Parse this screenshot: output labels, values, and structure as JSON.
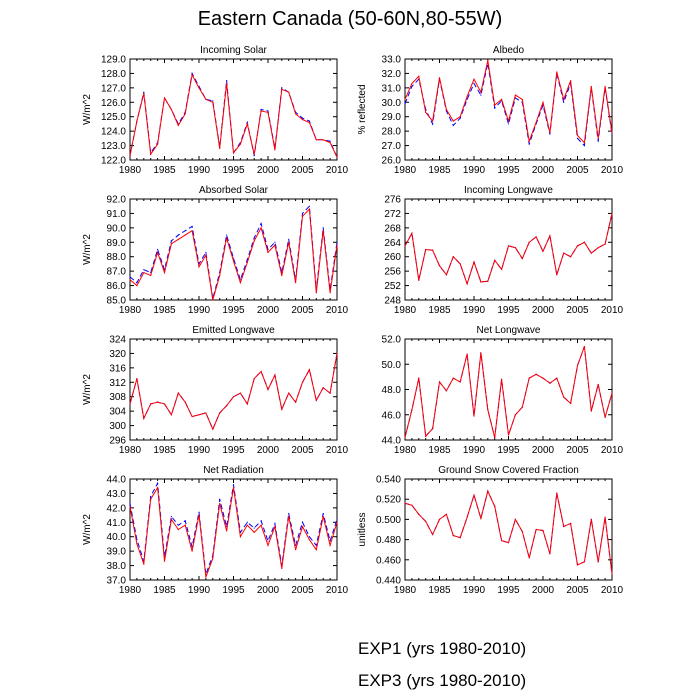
{
  "title": "Eastern Canada (50-60N,80-55W)",
  "legend": [
    {
      "label": "EXP1 (yrs 1980-2010)",
      "color": "#0000ff",
      "style": "dashed"
    },
    {
      "label": "EXP3 (yrs 1980-2010)",
      "color": "#ff0000",
      "style": "solid"
    }
  ],
  "chart_data": [
    {
      "type": "line",
      "title": "Incoming Solar",
      "ylabel": "W/m^2",
      "xlim": [
        1980,
        2010
      ],
      "ylim": [
        122.0,
        129.0
      ],
      "yticks": [
        "122.0",
        "123.0",
        "124.0",
        "125.0",
        "126.0",
        "127.0",
        "128.0",
        "129.0"
      ],
      "xticks": [
        "1980",
        "1985",
        "1990",
        "1995",
        "2000",
        "2005",
        "2010"
      ],
      "x": [
        1980,
        1981,
        1982,
        1983,
        1984,
        1985,
        1986,
        1987,
        1988,
        1989,
        1990,
        1991,
        1992,
        1993,
        1994,
        1995,
        1996,
        1997,
        1998,
        1999,
        2000,
        2001,
        2002,
        2003,
        2004,
        2005,
        2006,
        2007,
        2008,
        2009,
        2010
      ],
      "series": [
        {
          "name": "EXP1 (yrs 1980-2010)",
          "values": [
            122.3,
            124.7,
            126.7,
            122.5,
            123.2,
            126.3,
            125.5,
            124.5,
            125.3,
            128.0,
            127.1,
            126.2,
            126.1,
            122.9,
            127.5,
            122.5,
            123.2,
            124.6,
            122.3,
            125.5,
            125.4,
            122.8,
            127.0,
            126.7,
            125.3,
            124.9,
            124.7,
            123.4,
            123.4,
            123.3,
            122.2
          ]
        },
        {
          "name": "EXP3 (yrs 1980-2010)",
          "values": [
            122.3,
            124.7,
            126.6,
            122.4,
            123.1,
            126.3,
            125.5,
            124.4,
            125.2,
            127.9,
            127.0,
            126.2,
            126.0,
            122.8,
            127.3,
            122.5,
            123.1,
            124.5,
            122.4,
            125.4,
            125.3,
            122.7,
            126.9,
            126.7,
            125.2,
            124.8,
            124.6,
            123.4,
            123.4,
            123.2,
            122.2
          ]
        }
      ]
    },
    {
      "type": "line",
      "title": "Albedo",
      "ylabel": "% reflected",
      "xlim": [
        1980,
        2010
      ],
      "ylim": [
        26.0,
        33.0
      ],
      "yticks": [
        "26.0",
        "27.0",
        "28.0",
        "29.0",
        "30.0",
        "31.0",
        "32.0",
        "33.0"
      ],
      "xticks": [
        "1980",
        "1985",
        "1990",
        "1995",
        "2000",
        "2005",
        "2010"
      ],
      "x": [
        1980,
        1981,
        1982,
        1983,
        1984,
        1985,
        1986,
        1987,
        1988,
        1989,
        1990,
        1991,
        1992,
        1993,
        1994,
        1995,
        1996,
        1997,
        1998,
        1999,
        2000,
        2001,
        2002,
        2003,
        2004,
        2005,
        2006,
        2007,
        2008,
        2009,
        2010
      ],
      "series": [
        {
          "name": "EXP1 (yrs 1980-2010)",
          "values": [
            29.9,
            31.1,
            31.6,
            29.5,
            28.5,
            31.6,
            29.4,
            28.4,
            28.9,
            30.2,
            31.3,
            30.5,
            32.7,
            29.6,
            30.1,
            28.5,
            30.3,
            30.0,
            27.1,
            28.5,
            29.8,
            27.8,
            32.0,
            30.0,
            31.3,
            27.5,
            27.0,
            31.0,
            27.3,
            31.0,
            27.8
          ]
        },
        {
          "name": "EXP3 (yrs 1980-2010)",
          "values": [
            30.2,
            31.3,
            31.8,
            29.3,
            28.7,
            31.7,
            29.5,
            28.7,
            29.0,
            30.4,
            31.6,
            30.7,
            32.9,
            29.8,
            30.2,
            28.7,
            30.5,
            30.2,
            27.3,
            28.6,
            30.0,
            27.9,
            32.1,
            30.2,
            31.5,
            27.7,
            27.2,
            31.1,
            27.5,
            31.1,
            27.9
          ]
        }
      ]
    },
    {
      "type": "line",
      "title": "Absorbed Solar",
      "ylabel": "W/m^2",
      "xlim": [
        1980,
        2010
      ],
      "ylim": [
        85.0,
        92.0
      ],
      "yticks": [
        "85.0",
        "86.0",
        "87.0",
        "88.0",
        "89.0",
        "90.0",
        "91.0",
        "92.0"
      ],
      "xticks": [
        "1980",
        "1985",
        "1990",
        "1995",
        "2000",
        "2005",
        "2010"
      ],
      "x": [
        1980,
        1981,
        1982,
        1983,
        1984,
        1985,
        1986,
        1987,
        1988,
        1989,
        1990,
        1991,
        1992,
        1993,
        1994,
        1995,
        1996,
        1997,
        1998,
        1999,
        2000,
        2001,
        2002,
        2003,
        2004,
        2005,
        2006,
        2007,
        2008,
        2009,
        2010
      ],
      "series": [
        {
          "name": "EXP1 (yrs 1980-2010)",
          "values": [
            86.6,
            86.2,
            87.1,
            86.9,
            88.5,
            87.1,
            89.1,
            89.5,
            89.8,
            90.1,
            87.5,
            88.3,
            85.1,
            86.9,
            89.5,
            87.9,
            86.4,
            87.8,
            89.3,
            90.3,
            88.5,
            89.0,
            86.9,
            89.2,
            86.4,
            91.0,
            91.5,
            85.7,
            90.0,
            85.7,
            89.0
          ]
        },
        {
          "name": "EXP3 (yrs 1980-2010)",
          "values": [
            86.4,
            86.0,
            86.9,
            86.7,
            88.3,
            86.9,
            88.9,
            89.2,
            89.5,
            89.8,
            87.3,
            88.1,
            85.0,
            86.7,
            89.3,
            87.7,
            86.2,
            87.6,
            89.1,
            90.0,
            88.3,
            88.8,
            86.7,
            89.0,
            86.2,
            90.8,
            91.3,
            85.5,
            89.8,
            85.5,
            88.8
          ]
        }
      ]
    },
    {
      "type": "line",
      "title": "Incoming Longwave",
      "ylabel": "",
      "xlim": [
        1980,
        2010
      ],
      "ylim": [
        248,
        276
      ],
      "yticks": [
        "248",
        "252",
        "256",
        "260",
        "264",
        "268",
        "272",
        "276"
      ],
      "xticks": [
        "1980",
        "1985",
        "1990",
        "1995",
        "2000",
        "2005",
        "2010"
      ],
      "x": [
        1980,
        1981,
        1982,
        1983,
        1984,
        1985,
        1986,
        1987,
        1988,
        1989,
        1990,
        1991,
        1992,
        1993,
        1994,
        1995,
        1996,
        1997,
        1998,
        1999,
        2000,
        2001,
        2002,
        2003,
        2004,
        2005,
        2006,
        2007,
        2008,
        2009,
        2010
      ],
      "series": [
        {
          "name": "EXP1 (yrs 1980-2010)",
          "values": [
            263,
            266.5,
            253.5,
            262,
            261.8,
            257.5,
            255,
            260,
            258,
            252.5,
            258.5,
            253,
            253.2,
            259,
            256.5,
            263,
            262.5,
            259.5,
            264,
            265.5,
            261.5,
            265.8,
            255,
            261,
            260,
            263,
            264,
            261,
            262.5,
            263.5,
            272
          ]
        },
        {
          "name": "EXP3 (yrs 1980-2010)",
          "values": [
            263,
            266.5,
            253.5,
            262,
            261.8,
            257.5,
            255,
            260,
            258,
            252.5,
            258.5,
            253,
            253.2,
            259,
            256.5,
            263,
            262.5,
            259.5,
            264,
            265.5,
            261.5,
            265.8,
            255,
            261,
            260,
            263,
            264,
            261,
            262.5,
            263.5,
            272
          ]
        }
      ]
    },
    {
      "type": "line",
      "title": "Emitted Longwave",
      "ylabel": "W/m^2",
      "xlim": [
        1980,
        2010
      ],
      "ylim": [
        296,
        324
      ],
      "yticks": [
        "296",
        "300",
        "304",
        "308",
        "312",
        "316",
        "320",
        "324"
      ],
      "xticks": [
        "1980",
        "1985",
        "1990",
        "1995",
        "2000",
        "2005",
        "2010"
      ],
      "x": [
        1980,
        1981,
        1982,
        1983,
        1984,
        1985,
        1986,
        1987,
        1988,
        1989,
        1990,
        1991,
        1992,
        1993,
        1994,
        1995,
        1996,
        1997,
        1998,
        1999,
        2000,
        2001,
        2002,
        2003,
        2004,
        2005,
        2006,
        2007,
        2008,
        2009,
        2010
      ],
      "series": [
        {
          "name": "EXP1 (yrs 1980-2010)",
          "values": [
            306,
            313,
            302,
            306,
            306.5,
            306,
            303,
            309,
            306.5,
            302.5,
            303,
            303.5,
            299,
            303.5,
            305.5,
            308,
            309,
            306,
            313,
            315,
            310,
            314,
            304.5,
            309,
            306.5,
            312,
            315.5,
            307,
            310.5,
            309,
            320
          ]
        },
        {
          "name": "EXP3 (yrs 1980-2010)",
          "values": [
            306,
            313,
            302,
            306,
            306.5,
            306,
            303,
            309,
            306.5,
            302.5,
            303,
            303.5,
            299,
            303.5,
            305.5,
            308,
            309,
            306,
            313,
            315,
            310,
            314,
            304.5,
            309,
            306.5,
            312,
            315.5,
            307,
            310.5,
            309,
            320
          ]
        }
      ]
    },
    {
      "type": "line",
      "title": "Net Longwave",
      "ylabel": "",
      "xlim": [
        1980,
        2010
      ],
      "ylim": [
        44.0,
        52.0
      ],
      "yticks": [
        "44.0",
        "46.0",
        "48.0",
        "50.0",
        "52.0"
      ],
      "xticks": [
        "1980",
        "1985",
        "1990",
        "1995",
        "2000",
        "2005",
        "2010"
      ],
      "x": [
        1980,
        1981,
        1982,
        1983,
        1984,
        1985,
        1986,
        1987,
        1988,
        1989,
        1990,
        1991,
        1992,
        1993,
        1994,
        1995,
        1996,
        1997,
        1998,
        1999,
        2000,
        2001,
        2002,
        2003,
        2004,
        2005,
        2006,
        2007,
        2008,
        2009,
        2010
      ],
      "series": [
        {
          "name": "EXP1 (yrs 1980-2010)",
          "values": [
            44.2,
            46.4,
            48.9,
            44.3,
            44.9,
            48.6,
            47.9,
            48.9,
            48.6,
            50.8,
            45.9,
            50.9,
            46.4,
            44.2,
            48.8,
            44.4,
            46.0,
            46.6,
            48.9,
            49.2,
            48.9,
            48.5,
            48.9,
            47.4,
            46.9,
            49.9,
            51.4,
            46.3,
            48.4,
            45.8,
            47.7
          ]
        },
        {
          "name": "EXP3 (yrs 1980-2010)",
          "values": [
            44.2,
            46.4,
            48.9,
            44.3,
            44.9,
            48.6,
            47.9,
            48.9,
            48.6,
            50.8,
            45.9,
            50.9,
            46.4,
            44.2,
            48.8,
            44.4,
            46.0,
            46.6,
            48.9,
            49.2,
            48.9,
            48.5,
            48.9,
            47.4,
            46.9,
            49.9,
            51.4,
            46.3,
            48.4,
            45.8,
            47.7
          ]
        }
      ]
    },
    {
      "type": "line",
      "title": "Net Radiation",
      "ylabel": "W/m^2",
      "xlim": [
        1980,
        2010
      ],
      "ylim": [
        37.0,
        44.0
      ],
      "yticks": [
        "37.0",
        "38.0",
        "39.0",
        "40.0",
        "41.0",
        "42.0",
        "43.0",
        "44.0"
      ],
      "xticks": [
        "1980",
        "1985",
        "1990",
        "1995",
        "2000",
        "2005",
        "2010"
      ],
      "x": [
        1980,
        1981,
        1982,
        1983,
        1984,
        1985,
        1986,
        1987,
        1988,
        1989,
        1990,
        1991,
        1992,
        1993,
        1994,
        1995,
        1996,
        1997,
        1998,
        1999,
        2000,
        2001,
        2002,
        2003,
        2004,
        2005,
        2006,
        2007,
        2008,
        2009,
        2010
      ],
      "series": [
        {
          "name": "EXP1 (yrs 1980-2010)",
          "values": [
            42.3,
            39.8,
            38.3,
            42.8,
            43.7,
            38.6,
            41.4,
            40.8,
            41.1,
            39.3,
            41.7,
            37.4,
            38.7,
            42.6,
            40.7,
            43.6,
            40.3,
            41.0,
            40.6,
            41.1,
            39.7,
            40.9,
            38.0,
            41.6,
            39.4,
            41.0,
            40.0,
            39.4,
            41.6,
            39.7,
            41.2
          ]
        },
        {
          "name": "EXP3 (yrs 1980-2010)",
          "values": [
            42.1,
            39.5,
            38.1,
            42.6,
            43.4,
            38.3,
            41.2,
            40.5,
            40.8,
            39.0,
            41.5,
            37.2,
            38.5,
            42.3,
            40.4,
            43.4,
            40.0,
            40.8,
            40.3,
            40.8,
            39.4,
            40.7,
            37.8,
            41.4,
            39.1,
            40.7,
            39.8,
            39.1,
            41.4,
            39.4,
            41.0
          ]
        }
      ]
    },
    {
      "type": "line",
      "title": "Ground Snow Covered Fraction",
      "ylabel": "unitless",
      "xlim": [
        1980,
        2010
      ],
      "ylim": [
        0.44,
        0.54
      ],
      "yticks": [
        "0.440",
        "0.460",
        "0.480",
        "0.500",
        "0.520",
        "0.540"
      ],
      "xticks": [
        "1980",
        "1985",
        "1990",
        "1995",
        "2000",
        "2005",
        "2010"
      ],
      "x": [
        1980,
        1981,
        1982,
        1983,
        1984,
        1985,
        1986,
        1987,
        1988,
        1989,
        1990,
        1991,
        1992,
        1993,
        1994,
        1995,
        1996,
        1997,
        1998,
        1999,
        2000,
        2001,
        2002,
        2003,
        2004,
        2005,
        2006,
        2007,
        2008,
        2009,
        2010
      ],
      "series": [
        {
          "name": "EXP1 (yrs 1980-2010)",
          "values": [
            0.516,
            0.514,
            0.505,
            0.498,
            0.485,
            0.5,
            0.505,
            0.484,
            0.482,
            0.502,
            0.524,
            0.501,
            0.528,
            0.513,
            0.479,
            0.477,
            0.5,
            0.488,
            0.462,
            0.49,
            0.489,
            0.466,
            0.526,
            0.493,
            0.496,
            0.455,
            0.458,
            0.5,
            0.458,
            0.502,
            0.446
          ]
        },
        {
          "name": "EXP3 (yrs 1980-2010)",
          "values": [
            0.516,
            0.514,
            0.505,
            0.498,
            0.485,
            0.5,
            0.505,
            0.484,
            0.482,
            0.502,
            0.524,
            0.501,
            0.528,
            0.513,
            0.479,
            0.477,
            0.5,
            0.488,
            0.462,
            0.49,
            0.489,
            0.466,
            0.526,
            0.493,
            0.496,
            0.455,
            0.458,
            0.5,
            0.458,
            0.502,
            0.446
          ]
        }
      ]
    }
  ]
}
